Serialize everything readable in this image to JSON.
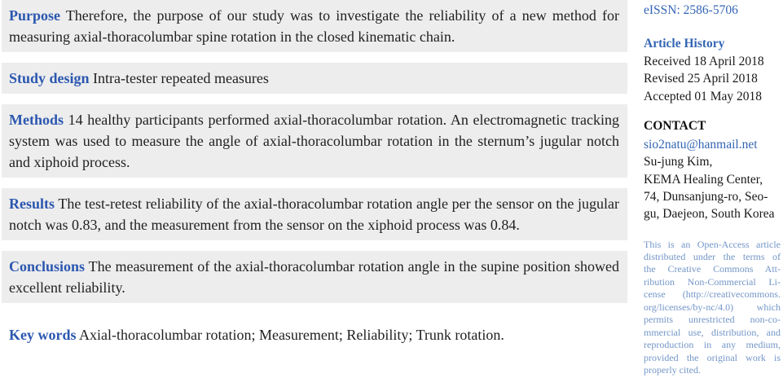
{
  "colors": {
    "section_label_blue": "#2b57b0",
    "link_blue": "#3465b4",
    "license_text_blue": "#7396c8",
    "block_background_gray": "#ededed",
    "body_text": "#1f1f1f"
  },
  "abstract": {
    "sections": [
      {
        "label": "Purpose",
        "text": "Therefore, the purpose of our study was to investigate the reliability of a new method for measuring axial-thoracolumbar spine rotation in the closed kinematic chain."
      },
      {
        "label": "Study design",
        "text": "Intra-tester repeated measures"
      },
      {
        "label": "Methods",
        "text": "14 healthy participants performed axial-thoracolumbar rotation. An electromagnetic tracking system was used to measure the angle of axial-thoracolumbar rotation in the sternum’s jugular notch and xiphoid process."
      },
      {
        "label": "Results",
        "text": "The test-retest reliability of the axial-thoracolumbar rotation angle per the sensor on the jugular notch was 0.83, and the measurement from the sensor on the xiphoid process was 0.84."
      },
      {
        "label": "Conclusions",
        "text": "The measurement of the axial-thoracolumbar rotation angle in the supine position showed excellent reliability."
      }
    ],
    "keywords": {
      "label": "Key words",
      "text": "Axial-thoracolumbar rotation; Measurement; Reliability; Trunk rotation."
    }
  },
  "sidebar": {
    "eissn": "eISSN: 2586-5706",
    "article_history": {
      "heading": "Article History",
      "entries": [
        "Received 18 April 2018",
        "Revised 25 April 2018",
        "Accepted 01 May 2018"
      ]
    },
    "contact": {
      "heading": "CONTACT",
      "email": "sio2natu@hanmail.net",
      "lines": [
        "Su-jung Kim,",
        "KEMA Healing Center,",
        "74, Dunsanjung-ro, Seo-",
        "gu, Daejeon, South Korea"
      ]
    },
    "license": {
      "lines": [
        "This is an Open-Access article",
        "distributed under the terms of",
        "the Creative Commons Att-",
        "ribution Non-Commercial Li-",
        "cense (http://creativecommons.",
        "org/licenses/by-nc/4.0) which",
        "permits unrestricted non-co-",
        "mmercial use, distribution, and",
        "reproduction in any medium,",
        "provided the original work is",
        "properly cited."
      ]
    }
  }
}
